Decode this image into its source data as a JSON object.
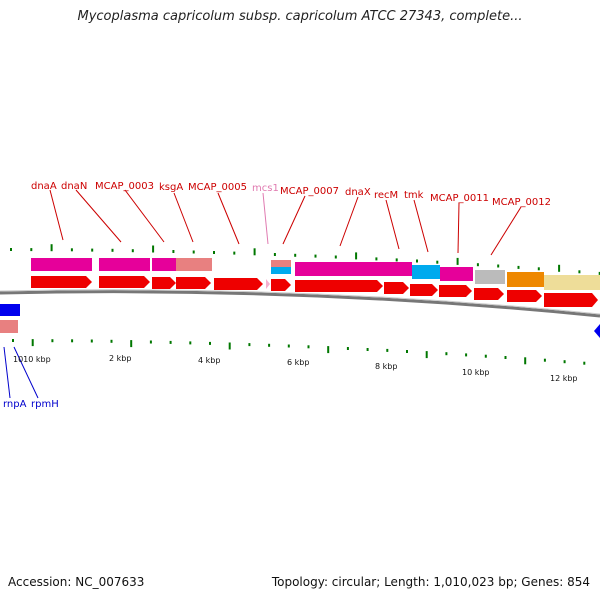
{
  "title": "Mycoplasma capricolum subsp. capricolum ATCC 27343, complete...",
  "accession": "Accession: NC_007633",
  "topology": "Topology: circular; Length: 1,010,023 bp; Genes: 854",
  "colors": {
    "label_red": "#cc0000",
    "label_pink": "#e07ab0",
    "label_blue": "#0000cc",
    "gene_red": "#ee0000",
    "gene_blue": "#0000ee",
    "magenta": "#e6009a",
    "salmon": "#e88080",
    "cyan": "#00aaee",
    "gray": "#bbbbbb",
    "orange": "#ee8800",
    "khaki": "#eedd99",
    "tick_green": "#007700",
    "backbone": "#888888"
  },
  "gene_labels": [
    {
      "text": "dnaA",
      "color": "red"
    },
    {
      "text": "dnaN",
      "color": "red"
    },
    {
      "text": "MCAP_0003",
      "color": "red"
    },
    {
      "text": "ksgA",
      "color": "red"
    },
    {
      "text": "MCAP_0005",
      "color": "red"
    },
    {
      "text": "mcs1",
      "color": "pink"
    },
    {
      "text": "MCAP_0007",
      "color": "red"
    },
    {
      "text": "dnaX",
      "color": "red"
    },
    {
      "text": "recM",
      "color": "red"
    },
    {
      "text": "tmk",
      "color": "red"
    },
    {
      "text": "MCAP_0011",
      "color": "red"
    },
    {
      "text": "MCAP_0012",
      "color": "red"
    },
    {
      "text": "rnpA",
      "color": "blue"
    },
    {
      "text": "rpmH",
      "color": "blue"
    }
  ],
  "scale_labels": [
    "1010 kbp",
    "2 kbp",
    "4 kbp",
    "6 kbp",
    "8 kbp",
    "10 kbp",
    "12 kbp"
  ]
}
